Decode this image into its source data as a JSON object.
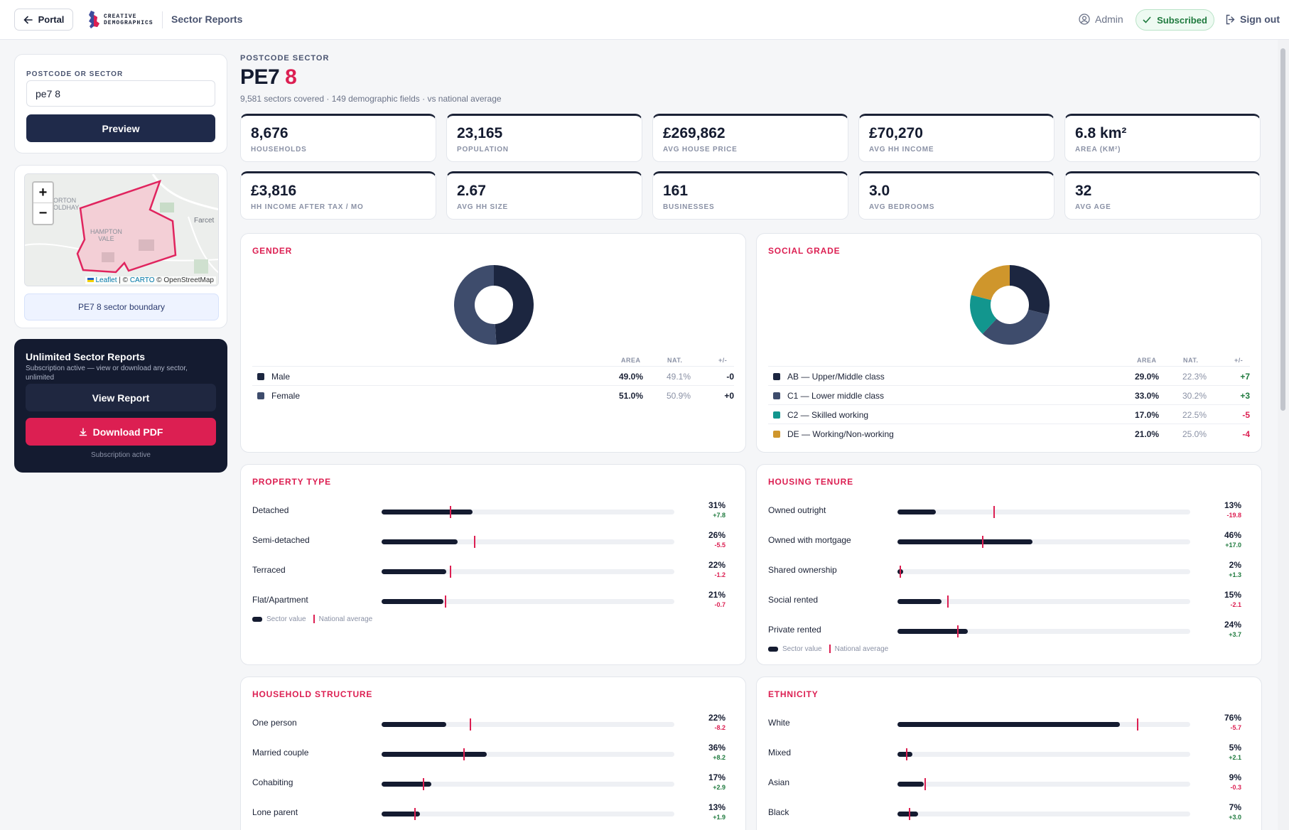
{
  "topbar": {
    "portal_label": "Portal",
    "logo_line1": "CREATIVE",
    "logo_line2": "DEMOGRAPHICS",
    "breadcrumb": "Sector Reports",
    "admin_label": "Admin",
    "subscribed_label": "Subscribed",
    "signout_label": "Sign out"
  },
  "search": {
    "label": "POSTCODE OR SECTOR",
    "value": "pe7 8",
    "preview_label": "Preview"
  },
  "map": {
    "place1": "ORTON",
    "place1b": "OLDHAY",
    "place2": "Farcet",
    "place3": "HAMPTON",
    "place3b": "VALE",
    "attribution_leaflet": "Leaflet",
    "attribution_sep": " | © ",
    "attribution_carto": "CARTO",
    "attribution_osm": " © OpenStreetMap",
    "boundary_label": "PE7 8 sector boundary"
  },
  "promo": {
    "title": "Unlimited Sector Reports",
    "desc": "Subscription active — view or download any sector, unlimited",
    "view_label": "View Report",
    "download_label": "Download PDF",
    "footer": "Subscription active"
  },
  "header": {
    "kicker": "POSTCODE SECTOR",
    "title_part1": "PE7",
    "title_part2": "8",
    "subtitle": "9,581 sectors covered · 149 demographic fields · vs national average"
  },
  "stats": [
    {
      "value": "8,676",
      "label": "HOUSEHOLDS"
    },
    {
      "value": "23,165",
      "label": "POPULATION"
    },
    {
      "value": "£269,862",
      "label": "AVG HOUSE PRICE"
    },
    {
      "value": "£70,270",
      "label": "AVG HH INCOME"
    },
    {
      "value": "6.8 km²",
      "label": "AREA (KM²)"
    },
    {
      "value": "£3,816",
      "label": "HH INCOME AFTER TAX / MO"
    },
    {
      "value": "2.67",
      "label": "AVG HH SIZE"
    },
    {
      "value": "161",
      "label": "BUSINESSES"
    },
    {
      "value": "3.0",
      "label": "AVG BEDROOMS"
    },
    {
      "value": "32",
      "label": "AVG AGE"
    }
  ],
  "table_headers": {
    "area": "AREA",
    "nat": "NAT.",
    "diff": "+/-"
  },
  "gender": {
    "title": "GENDER",
    "rows": [
      {
        "name": "Male",
        "area": "49.0%",
        "nat": "49.1%",
        "diff": "-0",
        "color": "#1c2640",
        "share": 49
      },
      {
        "name": "Female",
        "area": "51.0%",
        "nat": "50.9%",
        "diff": "+0",
        "color": "#3e4c6c",
        "share": 51
      }
    ]
  },
  "social_grade": {
    "title": "SOCIAL GRADE",
    "rows": [
      {
        "name": "AB — Upper/Middle class",
        "area": "29.0%",
        "nat": "22.3%",
        "diff": "+7",
        "color": "#1c2640",
        "share": 29
      },
      {
        "name": "C1 — Lower middle class",
        "area": "33.0%",
        "nat": "30.2%",
        "diff": "+3",
        "color": "#3e4c6c",
        "share": 33
      },
      {
        "name": "C2 — Skilled working",
        "area": "17.0%",
        "nat": "22.5%",
        "diff": "-5",
        "color": "#12968e",
        "share": 17
      },
      {
        "name": "DE — Working/Non-working",
        "area": "21.0%",
        "nat": "25.0%",
        "diff": "-4",
        "color": "#cf962c",
        "share": 21
      }
    ]
  },
  "legend": {
    "sector": "Sector value",
    "national": "National average"
  },
  "property_type": {
    "title": "PROPERTY TYPE",
    "rows": [
      {
        "label": "Detached",
        "pct": "31%",
        "delta": "+7.8",
        "value": 31,
        "national": 23.2
      },
      {
        "label": "Semi-detached",
        "pct": "26%",
        "delta": "-5.5",
        "value": 26,
        "national": 31.5
      },
      {
        "label": "Terraced",
        "pct": "22%",
        "delta": "-1.2",
        "value": 22,
        "national": 23.2
      },
      {
        "label": "Flat/Apartment",
        "pct": "21%",
        "delta": "-0.7",
        "value": 21,
        "national": 21.7
      }
    ]
  },
  "housing_tenure": {
    "title": "HOUSING TENURE",
    "rows": [
      {
        "label": "Owned outright",
        "pct": "13%",
        "delta": "-19.8",
        "value": 13,
        "national": 32.8
      },
      {
        "label": "Owned with mortgage",
        "pct": "46%",
        "delta": "+17.0",
        "value": 46,
        "national": 29
      },
      {
        "label": "Shared ownership",
        "pct": "2%",
        "delta": "+1.3",
        "value": 2,
        "national": 0.7
      },
      {
        "label": "Social rented",
        "pct": "15%",
        "delta": "-2.1",
        "value": 15,
        "national": 17.1
      },
      {
        "label": "Private rented",
        "pct": "24%",
        "delta": "+3.7",
        "value": 24,
        "national": 20.3
      }
    ]
  },
  "household_structure": {
    "title": "HOUSEHOLD STRUCTURE",
    "rows": [
      {
        "label": "One person",
        "pct": "22%",
        "delta": "-8.2",
        "value": 22,
        "national": 30.2
      },
      {
        "label": "Married couple",
        "pct": "36%",
        "delta": "+8.2",
        "value": 36,
        "national": 27.8
      },
      {
        "label": "Cohabiting",
        "pct": "17%",
        "delta": "+2.9",
        "value": 17,
        "national": 14.1
      },
      {
        "label": "Lone parent",
        "pct": "13%",
        "delta": "+1.9",
        "value": 13,
        "national": 11.1
      }
    ]
  },
  "ethnicity": {
    "title": "ETHNICITY",
    "rows": [
      {
        "label": "White",
        "pct": "76%",
        "delta": "-5.7",
        "value": 76,
        "national": 81.7
      },
      {
        "label": "Mixed",
        "pct": "5%",
        "delta": "+2.1",
        "value": 5,
        "national": 2.9
      },
      {
        "label": "Asian",
        "pct": "9%",
        "delta": "-0.3",
        "value": 9,
        "national": 9.3
      },
      {
        "label": "Black",
        "pct": "7%",
        "delta": "+3.0",
        "value": 7,
        "national": 4
      }
    ]
  },
  "colors": {
    "accent": "#dc1f52",
    "navy": "#141b30",
    "positive": "#1f7a3e"
  }
}
